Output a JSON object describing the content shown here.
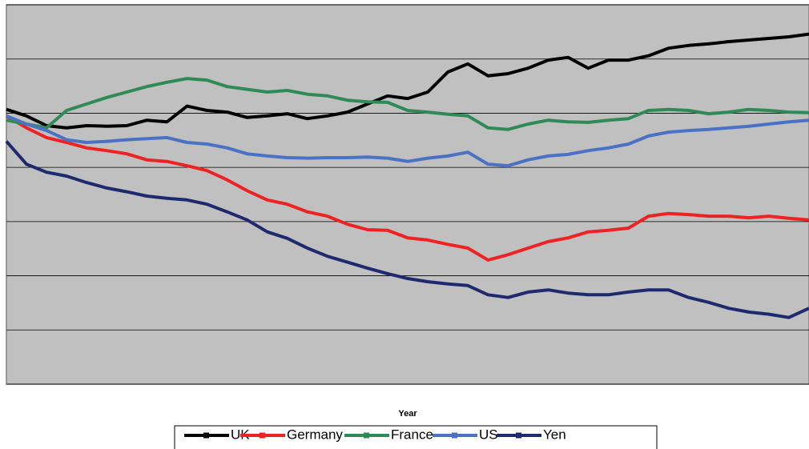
{
  "chart_data": {
    "type": "line",
    "x_label": "Year",
    "x": [
      0,
      1,
      2,
      3,
      4,
      5,
      6,
      7,
      8,
      9,
      10,
      11,
      12,
      13,
      14,
      15,
      16,
      17,
      18,
      19,
      20,
      21,
      22,
      23,
      24,
      25,
      26,
      27,
      28,
      29,
      30,
      31,
      32,
      33,
      34,
      35,
      36,
      37,
      38,
      39,
      40
    ],
    "xlim": [
      0,
      40
    ],
    "ylim": [
      0,
      7
    ],
    "yticks": [
      0,
      1,
      2,
      3,
      4,
      5,
      6,
      7
    ],
    "grid": true,
    "legend": "bottom",
    "series": [
      {
        "name": "UK",
        "color": "#000000",
        "values": [
          5.07,
          4.95,
          4.77,
          4.73,
          4.77,
          4.76,
          4.77,
          4.87,
          4.84,
          5.13,
          5.05,
          5.02,
          4.92,
          4.95,
          4.99,
          4.9,
          4.95,
          5.02,
          5.17,
          5.32,
          5.27,
          5.39,
          5.76,
          5.91,
          5.69,
          5.73,
          5.83,
          5.98,
          6.03,
          5.83,
          5.98,
          5.98,
          6.06,
          6.2,
          6.25,
          6.28,
          6.32,
          6.35,
          6.38,
          6.41,
          6.46
        ]
      },
      {
        "name": "Germany",
        "color": "#ee2222",
        "values": [
          4.95,
          4.73,
          4.55,
          4.46,
          4.36,
          4.31,
          4.25,
          4.14,
          4.11,
          4.03,
          3.94,
          3.77,
          3.57,
          3.4,
          3.32,
          3.18,
          3.1,
          2.95,
          2.85,
          2.84,
          2.7,
          2.66,
          2.58,
          2.51,
          2.29,
          2.39,
          2.51,
          2.63,
          2.7,
          2.81,
          2.84,
          2.88,
          3.1,
          3.15,
          3.13,
          3.1,
          3.1,
          3.07,
          3.1,
          3.06,
          3.03
        ]
      },
      {
        "name": "France",
        "color": "#2e8b57",
        "values": [
          4.87,
          4.8,
          4.73,
          5.05,
          5.17,
          5.29,
          5.39,
          5.49,
          5.57,
          5.64,
          5.61,
          5.49,
          5.44,
          5.39,
          5.42,
          5.35,
          5.32,
          5.24,
          5.21,
          5.2,
          5.05,
          5.02,
          4.98,
          4.95,
          4.73,
          4.7,
          4.8,
          4.87,
          4.84,
          4.83,
          4.87,
          4.9,
          5.05,
          5.07,
          5.05,
          4.99,
          5.02,
          5.07,
          5.05,
          5.02,
          5.01
        ]
      },
      {
        "name": "US",
        "color": "#4a72c4",
        "values": [
          4.95,
          4.8,
          4.68,
          4.51,
          4.46,
          4.48,
          4.51,
          4.53,
          4.55,
          4.46,
          4.43,
          4.36,
          4.25,
          4.21,
          4.18,
          4.17,
          4.18,
          4.18,
          4.19,
          4.17,
          4.11,
          4.17,
          4.21,
          4.28,
          4.06,
          4.03,
          4.14,
          4.21,
          4.24,
          4.31,
          4.36,
          4.43,
          4.58,
          4.65,
          4.68,
          4.7,
          4.73,
          4.76,
          4.8,
          4.84,
          4.87
        ]
      },
      {
        "name": "Yen",
        "color": "#1f2a6e",
        "values": [
          4.48,
          4.06,
          3.91,
          3.84,
          3.72,
          3.62,
          3.55,
          3.47,
          3.43,
          3.4,
          3.32,
          3.18,
          3.03,
          2.81,
          2.69,
          2.51,
          2.36,
          2.25,
          2.14,
          2.04,
          1.95,
          1.89,
          1.85,
          1.82,
          1.65,
          1.6,
          1.7,
          1.74,
          1.68,
          1.65,
          1.65,
          1.7,
          1.74,
          1.74,
          1.6,
          1.51,
          1.4,
          1.33,
          1.29,
          1.23,
          1.4
        ]
      }
    ]
  }
}
